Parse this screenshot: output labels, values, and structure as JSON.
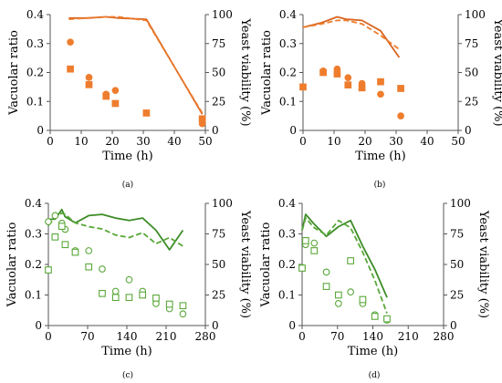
{
  "chart_data": [
    {
      "panel": "(a)",
      "type": "line",
      "xlabel": "Time (h)",
      "ylabel": "Vacuolar ratio",
      "y2label": "Yeast viability (%)",
      "xlim": [
        0,
        50
      ],
      "xticks": [
        0,
        10,
        20,
        30,
        40,
        50
      ],
      "ylim": [
        0,
        0.4
      ],
      "yticks": [
        0,
        0.1,
        0.2,
        0.3,
        0.4
      ],
      "y2lim": [
        0,
        100
      ],
      "y2ticks": [
        0,
        25,
        50,
        75,
        100
      ],
      "colors": {
        "main": "#ee7d2e",
        "dark": "#d9651f"
      },
      "series": [
        {
          "axis": "y2",
          "style": "solid",
          "x": [
            6,
            12,
            18,
            22,
            31,
            49
          ],
          "y": [
            97,
            97,
            98,
            97,
            96,
            14
          ]
        },
        {
          "axis": "y2",
          "style": "dashed",
          "x": [
            6,
            12,
            18,
            22,
            31,
            49
          ],
          "y": [
            96,
            97,
            98,
            98,
            95,
            15
          ]
        },
        {
          "axis": "y",
          "marker": "circle-filled",
          "x": [
            6.5,
            12.5,
            18,
            21,
            49
          ],
          "y": [
            0.305,
            0.183,
            0.125,
            0.138,
            0.023
          ]
        },
        {
          "axis": "y",
          "marker": "square-filled",
          "x": [
            6.5,
            12.5,
            18,
            21,
            31,
            49
          ],
          "y": [
            0.212,
            0.158,
            0.118,
            0.093,
            0.06,
            0.04
          ]
        }
      ]
    },
    {
      "panel": "(b)",
      "type": "line",
      "xlabel": "Time (h)",
      "ylabel": "Vacuolar ratio",
      "y2label": "Yeast viability (%)",
      "xlim": [
        0,
        50
      ],
      "xticks": [
        0,
        10,
        20,
        30,
        40,
        50
      ],
      "ylim": [
        0,
        0.4
      ],
      "yticks": [
        0,
        0.1,
        0.2,
        0.3,
        0.4
      ],
      "y2lim": [
        0,
        100
      ],
      "y2ticks": [
        0,
        25,
        50,
        75,
        100
      ],
      "colors": {
        "main": "#ee7d2e",
        "dark": "#d9651f"
      },
      "series": [
        {
          "axis": "y2",
          "style": "solid",
          "x": [
            0,
            6,
            11,
            14,
            19,
            25,
            31
          ],
          "y": [
            89,
            93,
            98,
            96,
            95,
            86,
            63
          ]
        },
        {
          "axis": "y2",
          "style": "dashed",
          "x": [
            0,
            6,
            11,
            14,
            19,
            25,
            31
          ],
          "y": [
            89,
            92,
            95,
            95,
            92,
            82,
            70
          ]
        },
        {
          "axis": "y",
          "marker": "circle-filled",
          "x": [
            6.5,
            11,
            14.5,
            19,
            25,
            31.5
          ],
          "y": [
            0.205,
            0.212,
            0.182,
            0.162,
            0.125,
            0.05
          ]
        },
        {
          "axis": "y",
          "marker": "square-filled",
          "x": [
            0,
            6.5,
            11,
            14.5,
            19,
            25,
            31.5
          ],
          "y": [
            0.15,
            0.2,
            0.195,
            0.157,
            0.147,
            0.168,
            0.145
          ]
        }
      ]
    },
    {
      "panel": "(c)",
      "type": "line",
      "xlabel": "Time (h)",
      "ylabel": "Vacuolar ratio",
      "y2label": "Yeast viability (%)",
      "xlim": [
        0,
        280
      ],
      "xticks": [
        0,
        70,
        140,
        210,
        280
      ],
      "ylim": [
        0,
        0.4
      ],
      "yticks": [
        0,
        0.1,
        0.2,
        0.3,
        0.4
      ],
      "y2lim": [
        0,
        100
      ],
      "y2ticks": [
        0,
        25,
        50,
        75,
        100
      ],
      "colors": {
        "main": "#5aa83a",
        "dark": "#3d8c27"
      },
      "series": [
        {
          "axis": "y2",
          "style": "solid",
          "x": [
            0,
            12,
            24,
            30,
            48,
            72,
            96,
            120,
            144,
            168,
            192,
            216,
            240
          ],
          "y": [
            87,
            87,
            95,
            89,
            84,
            90,
            91,
            88,
            86,
            88,
            78,
            62,
            78
          ]
        },
        {
          "axis": "y2",
          "style": "dashed",
          "x": [
            0,
            12,
            24,
            30,
            48,
            72,
            96,
            120,
            144,
            168,
            192,
            216,
            240
          ],
          "y": [
            82,
            88,
            92,
            91,
            84,
            81,
            79,
            74,
            72,
            76,
            67,
            72,
            65
          ]
        },
        {
          "axis": "y",
          "marker": "circle-open",
          "x": [
            0,
            12,
            24,
            30,
            48,
            72,
            96,
            120,
            144,
            168,
            192,
            216,
            240
          ],
          "y": [
            0.34,
            0.36,
            0.335,
            0.315,
            0.245,
            0.245,
            0.185,
            0.112,
            0.15,
            0.112,
            0.072,
            0.055,
            0.038
          ]
        },
        {
          "axis": "y",
          "marker": "square-open",
          "x": [
            0,
            12,
            24,
            30,
            48,
            72,
            96,
            120,
            144,
            168,
            192,
            216,
            240
          ],
          "y": [
            0.182,
            0.29,
            0.325,
            0.265,
            0.24,
            0.192,
            0.105,
            0.092,
            0.092,
            0.1,
            0.09,
            0.07,
            0.065
          ]
        }
      ]
    },
    {
      "panel": "(d)",
      "type": "line",
      "xlabel": "Time (h)",
      "ylabel": "Vacuolar ratio",
      "y2label": "Yeast viability (%)",
      "xlim": [
        0,
        280
      ],
      "xticks": [
        0,
        70,
        140,
        210,
        280
      ],
      "ylim": [
        0,
        0.4
      ],
      "yticks": [
        0,
        0.1,
        0.2,
        0.3,
        0.4
      ],
      "y2lim": [
        0,
        100
      ],
      "y2ticks": [
        0,
        25,
        50,
        75,
        100
      ],
      "colors": {
        "main": "#5aa83a",
        "dark": "#3d8c27"
      },
      "series": [
        {
          "axis": "y2",
          "style": "solid",
          "x": [
            0,
            7,
            24,
            48,
            72,
            96,
            120,
            144,
            168
          ],
          "y": [
            78,
            91,
            83,
            73,
            81,
            86,
            65,
            46,
            23
          ]
        },
        {
          "axis": "y2",
          "style": "dashed",
          "x": [
            0,
            7,
            24,
            48,
            72,
            96,
            120,
            144,
            168
          ],
          "y": [
            78,
            88,
            80,
            74,
            86,
            80,
            60,
            37,
            10
          ]
        },
        {
          "axis": "y",
          "marker": "circle-open",
          "x": [
            0,
            7,
            24,
            48,
            72,
            96,
            120,
            144,
            168
          ],
          "y": [
            0.19,
            0.265,
            0.27,
            0.175,
            0.072,
            0.11,
            0.072,
            0.035,
            0.018
          ]
        },
        {
          "axis": "y",
          "marker": "square-open",
          "x": [
            0,
            7,
            24,
            48,
            72,
            96,
            120,
            144,
            168
          ],
          "y": [
            0.188,
            0.278,
            0.245,
            0.128,
            0.1,
            0.212,
            0.085,
            0.03,
            0.022
          ]
        }
      ]
    }
  ]
}
